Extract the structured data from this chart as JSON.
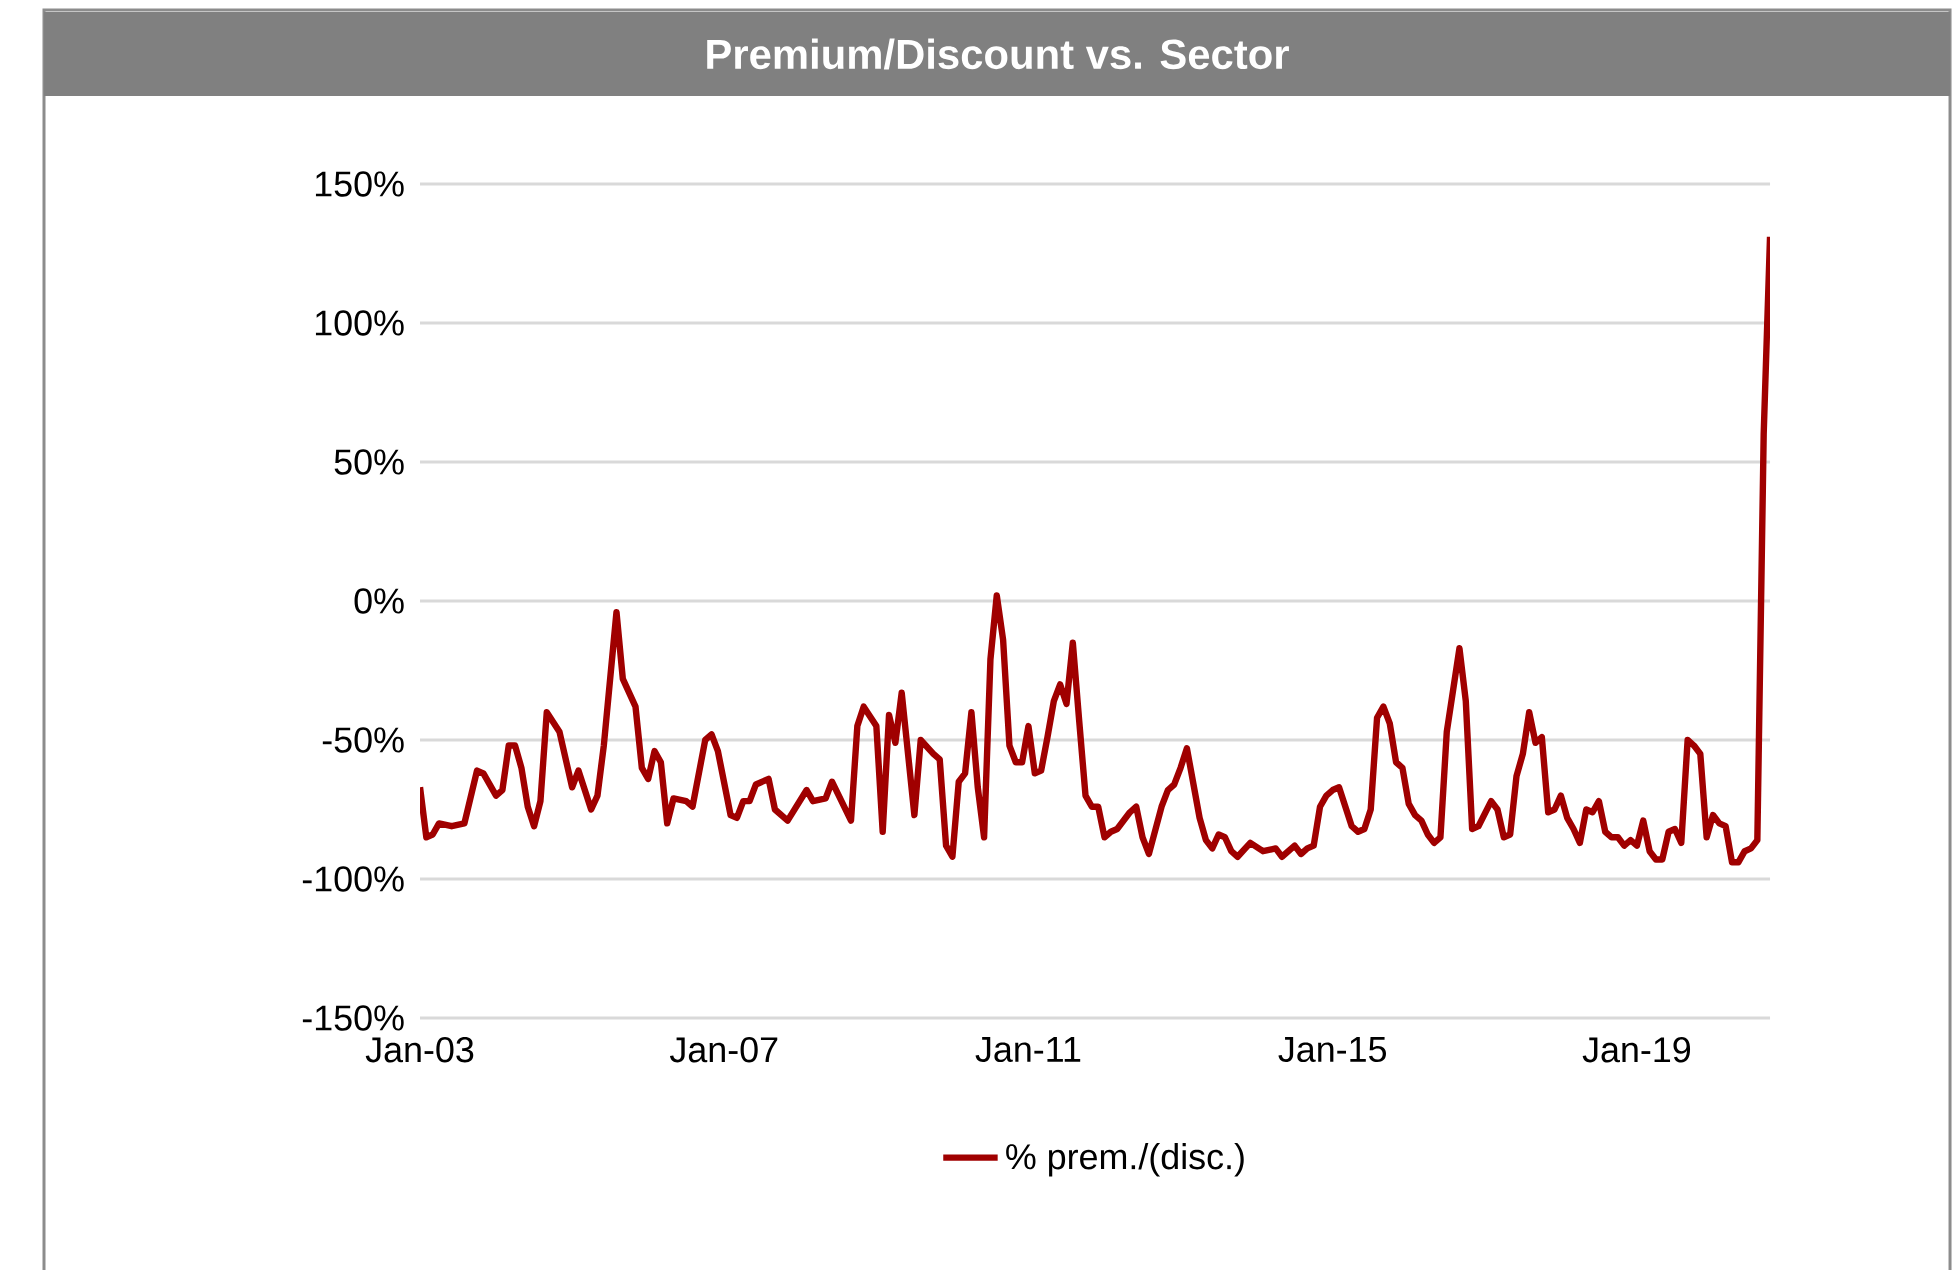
{
  "chart_data": {
    "type": "line",
    "title": "Premium/Discount vs. Sector",
    "x": [
      "2003-01",
      "2003-02",
      "2003-03",
      "2003-04",
      "2003-06",
      "2003-08",
      "2003-10",
      "2003-11",
      "2004-01",
      "2004-02",
      "2004-03",
      "2004-04",
      "2004-05",
      "2004-06",
      "2004-07",
      "2004-08",
      "2004-09",
      "2004-11",
      "2005-01",
      "2005-02",
      "2005-04",
      "2005-05",
      "2005-06",
      "2005-08",
      "2005-09",
      "2005-11",
      "2005-12",
      "2006-01",
      "2006-02",
      "2006-03",
      "2006-04",
      "2006-05",
      "2006-07",
      "2006-08",
      "2006-10",
      "2006-11",
      "2006-12",
      "2007-02",
      "2007-03",
      "2007-04",
      "2007-05",
      "2007-06",
      "2007-08",
      "2007-09",
      "2007-11",
      "2008-02",
      "2008-03",
      "2008-05",
      "2008-06",
      "2008-09",
      "2008-10",
      "2008-11",
      "2009-01",
      "2009-02",
      "2009-03",
      "2009-04",
      "2009-05",
      "2009-07",
      "2009-08",
      "2009-10",
      "2009-11",
      "2009-12",
      "2010-01",
      "2010-02",
      "2010-03",
      "2010-04",
      "2010-05",
      "2010-06",
      "2010-07",
      "2010-08",
      "2010-09",
      "2010-10",
      "2010-11",
      "2010-12",
      "2011-01",
      "2011-02",
      "2011-03",
      "2011-04",
      "2011-05",
      "2011-06",
      "2011-07",
      "2011-08",
      "2011-09",
      "2011-10",
      "2011-11",
      "2011-12",
      "2012-01",
      "2012-02",
      "2012-03",
      "2012-05",
      "2012-06",
      "2012-07",
      "2012-08",
      "2012-10",
      "2012-11",
      "2012-12",
      "2013-01",
      "2013-02",
      "2013-04",
      "2013-05",
      "2013-06",
      "2013-07",
      "2013-08",
      "2013-09",
      "2013-10",
      "2013-12",
      "2014-02",
      "2014-04",
      "2014-05",
      "2014-07",
      "2014-08",
      "2014-09",
      "2014-10",
      "2014-11",
      "2014-12",
      "2015-01",
      "2015-02",
      "2015-04",
      "2015-05",
      "2015-06",
      "2015-07",
      "2015-08",
      "2015-09",
      "2015-10",
      "2015-11",
      "2015-12",
      "2016-01",
      "2016-02",
      "2016-03",
      "2016-04",
      "2016-05",
      "2016-06",
      "2016-07",
      "2016-09",
      "2016-10",
      "2016-11",
      "2016-12",
      "2017-02",
      "2017-03",
      "2017-04",
      "2017-05",
      "2017-06",
      "2017-07",
      "2017-08",
      "2017-09",
      "2017-10",
      "2017-11",
      "2017-12",
      "2018-01",
      "2018-02",
      "2018-03",
      "2018-04",
      "2018-05",
      "2018-06",
      "2018-07",
      "2018-08",
      "2018-09",
      "2018-10",
      "2018-11",
      "2018-12",
      "2019-01",
      "2019-02",
      "2019-03",
      "2019-04",
      "2019-05",
      "2019-06",
      "2019-07",
      "2019-08",
      "2019-09",
      "2019-10",
      "2019-11",
      "2019-12",
      "2020-01",
      "2020-02",
      "2020-03",
      "2020-04",
      "2020-05",
      "2020-06",
      "2020-07",
      "2020-08",
      "2020-09",
      "2020-10"
    ],
    "series": [
      {
        "name": "% prem./(disc.)",
        "color": "#a00000",
        "values": [
          -67,
          -85,
          -84,
          -80,
          -81,
          -80,
          -61,
          -62,
          -70,
          -68,
          -52,
          -52,
          -60,
          -74,
          -81,
          -72,
          -40,
          -47,
          -67,
          -61,
          -75,
          -70,
          -52,
          -4,
          -28,
          -38,
          -60,
          -64,
          -54,
          -58,
          -80,
          -71,
          -72,
          -74,
          -50,
          -48,
          -54,
          -77,
          -78,
          -72,
          -72,
          -66,
          -64,
          -75,
          -79,
          -68,
          -72,
          -71,
          -65,
          -79,
          -45,
          -38,
          -45,
          -83,
          -41,
          -51,
          -33,
          -77,
          -50,
          -55,
          -57,
          -88,
          -92,
          -65,
          -62,
          -40,
          -67,
          -85,
          -21,
          2,
          -14,
          -52,
          -58,
          -58,
          -45,
          -62,
          -61,
          -49,
          -36,
          -30,
          -37,
          -15,
          -43,
          -70,
          -74,
          -74,
          -85,
          -83,
          -82,
          -76,
          -74,
          -85,
          -91,
          -74,
          -68,
          -66,
          -60,
          -53,
          -78,
          -86,
          -89,
          -84,
          -85,
          -90,
          -92,
          -87,
          -90,
          -89,
          -92,
          -88,
          -91,
          -89,
          -88,
          -74,
          -70,
          -68,
          -67,
          -81,
          -83,
          -82,
          -75,
          -42,
          -38,
          -44,
          -58,
          -60,
          -73,
          -77,
          -79,
          -84,
          -87,
          -85,
          -47,
          -17,
          -36,
          -82,
          -81,
          -72,
          -75,
          -85,
          -84,
          -63,
          -55,
          -40,
          -51,
          -49,
          -76,
          -75,
          -70,
          -78,
          -82,
          -87,
          -75,
          -76,
          -72,
          -83,
          -85,
          -85,
          -88,
          -86,
          -88,
          -79,
          -90,
          -93,
          -93,
          -83,
          -82,
          -87,
          -50,
          -52,
          -55,
          -85,
          -77,
          -80,
          -81,
          -94,
          -94,
          -90,
          -89,
          -86,
          60,
          131
        ]
      }
    ],
    "xlim": [
      "2003-01",
      "2020-10"
    ],
    "xticks": [
      {
        "value": "2003-01",
        "label": "Jan-03"
      },
      {
        "value": "2007-01",
        "label": "Jan-07"
      },
      {
        "value": "2011-01",
        "label": "Jan-11"
      },
      {
        "value": "2015-01",
        "label": "Jan-15"
      },
      {
        "value": "2019-01",
        "label": "Jan-19"
      }
    ],
    "ylim": [
      -150,
      150
    ],
    "yticks": [
      {
        "value": -150,
        "label": "-150%"
      },
      {
        "value": -100,
        "label": "-100%"
      },
      {
        "value": -50,
        "label": "-50%"
      },
      {
        "value": 0,
        "label": "0%"
      },
      {
        "value": 50,
        "label": "50%"
      },
      {
        "value": 100,
        "label": "100%"
      },
      {
        "value": 150,
        "label": "150%"
      }
    ],
    "grid": "y",
    "legend": "bottom",
    "marker": "none",
    "line_style": "solid"
  }
}
